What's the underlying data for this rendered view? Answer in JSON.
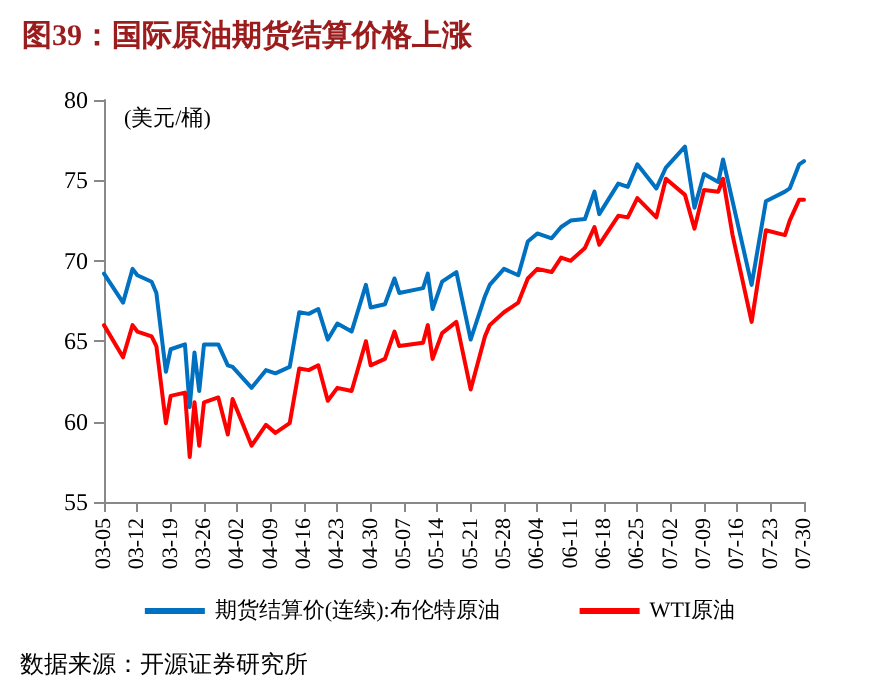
{
  "chart_data": {
    "type": "line",
    "title": "图39：国际原油期货结算价格上涨",
    "ylabel": "(美元/桶)",
    "annotations": [
      "数据来源：开源证券研究所"
    ],
    "x": [
      "--03-05",
      "--03-09",
      "--03-11",
      "--03-12",
      "--03-15",
      "--03-16",
      "--03-18",
      "--03-19",
      "--03-22",
      "--03-23",
      "--03-24",
      "--03-25",
      "--03-26",
      "--03-29",
      "--03-31",
      "--04-01",
      "--04-05",
      "--04-08",
      "--04-10",
      "--04-13",
      "--04-15",
      "--04-17",
      "--04-19",
      "--04-21",
      "--04-23",
      "--04-26",
      "--04-29",
      "--04-30",
      "--05-03",
      "--05-05",
      "--05-06",
      "--05-11",
      "--05-12",
      "--05-13",
      "--05-15",
      "--05-18",
      "--05-21",
      "--05-24",
      "--05-25",
      "--05-28",
      "--05-31",
      "--06-02",
      "--06-04",
      "--06-07",
      "--06-09",
      "--06-11",
      "--06-14",
      "--06-16",
      "--06-17",
      "--06-21",
      "--06-23",
      "--06-25",
      "--06-29",
      "--07-01",
      "--07-05",
      "--07-07",
      "--07-09",
      "--07-12",
      "--07-13",
      "--07-15",
      "--07-19",
      "--07-22",
      "--07-26",
      "--07-27",
      "--07-29",
      "--07-30"
    ],
    "series": [
      {
        "name": "期货结算价(连续):布伦特原油",
        "color": "#0070c0",
        "values": [
          69.2,
          67.4,
          69.5,
          69.1,
          68.7,
          68.0,
          63.1,
          64.5,
          64.8,
          60.9,
          64.3,
          61.9,
          64.8,
          64.8,
          63.5,
          63.4,
          62.1,
          63.2,
          63.0,
          63.4,
          66.8,
          66.7,
          67.0,
          65.1,
          66.1,
          65.6,
          68.5,
          67.1,
          67.3,
          68.9,
          68.0,
          68.3,
          69.2,
          67.0,
          68.7,
          69.3,
          65.1,
          67.8,
          68.5,
          69.5,
          69.1,
          71.2,
          71.7,
          71.4,
          72.1,
          72.5,
          72.6,
          74.3,
          72.9,
          74.8,
          74.6,
          76.0,
          74.5,
          75.8,
          77.1,
          73.3,
          75.4,
          74.9,
          76.3,
          73.7,
          68.5,
          73.7,
          74.3,
          74.5,
          76.0,
          76.2
        ]
      },
      {
        "name": "WTI原油",
        "color": "#ff0000",
        "values": [
          66.0,
          64.0,
          66.0,
          65.6,
          65.3,
          64.7,
          59.9,
          61.6,
          61.8,
          57.8,
          61.2,
          58.5,
          61.2,
          61.5,
          59.2,
          61.4,
          58.5,
          59.8,
          59.3,
          59.9,
          63.3,
          63.2,
          63.5,
          61.3,
          62.1,
          61.9,
          65.0,
          63.5,
          63.9,
          65.6,
          64.7,
          64.9,
          66.0,
          63.9,
          65.5,
          66.2,
          62.0,
          65.3,
          66.0,
          66.8,
          67.4,
          68.9,
          69.5,
          69.3,
          70.2,
          70.0,
          70.8,
          72.1,
          71.0,
          72.8,
          72.7,
          73.9,
          72.7,
          75.1,
          74.1,
          72.0,
          74.4,
          74.3,
          75.1,
          71.6,
          66.2,
          71.9,
          71.6,
          72.5,
          73.8,
          73.8
        ]
      }
    ],
    "xlim": [
      "--03-05",
      "--07-30"
    ],
    "xticks": [
      {
        "value": "--03-05",
        "label": "03-05"
      },
      {
        "value": "--03-12",
        "label": "03-12"
      },
      {
        "value": "--03-19",
        "label": "03-19"
      },
      {
        "value": "--03-26",
        "label": "03-26"
      },
      {
        "value": "--04-02",
        "label": "04-02"
      },
      {
        "value": "--04-09",
        "label": "04-09"
      },
      {
        "value": "--04-16",
        "label": "04-16"
      },
      {
        "value": "--04-23",
        "label": "04-23"
      },
      {
        "value": "--04-30",
        "label": "04-30"
      },
      {
        "value": "--05-07",
        "label": "05-07"
      },
      {
        "value": "--05-14",
        "label": "05-14"
      },
      {
        "value": "--05-21",
        "label": "05-21"
      },
      {
        "value": "--05-28",
        "label": "05-28"
      },
      {
        "value": "--06-04",
        "label": "06-04"
      },
      {
        "value": "--06-11",
        "label": "06-11"
      },
      {
        "value": "--06-18",
        "label": "06-18"
      },
      {
        "value": "--06-25",
        "label": "06-25"
      },
      {
        "value": "--07-02",
        "label": "07-02"
      },
      {
        "value": "--07-09",
        "label": "07-09"
      },
      {
        "value": "--07-16",
        "label": "07-16"
      },
      {
        "value": "--07-23",
        "label": "07-23"
      },
      {
        "value": "--07-30",
        "label": "07-30"
      }
    ],
    "ylim": [
      55,
      80
    ],
    "yticks": [
      55,
      60,
      65,
      70,
      75,
      80
    ],
    "grid": false,
    "legend": "bottom",
    "marker": "none",
    "line_style": "solid"
  }
}
